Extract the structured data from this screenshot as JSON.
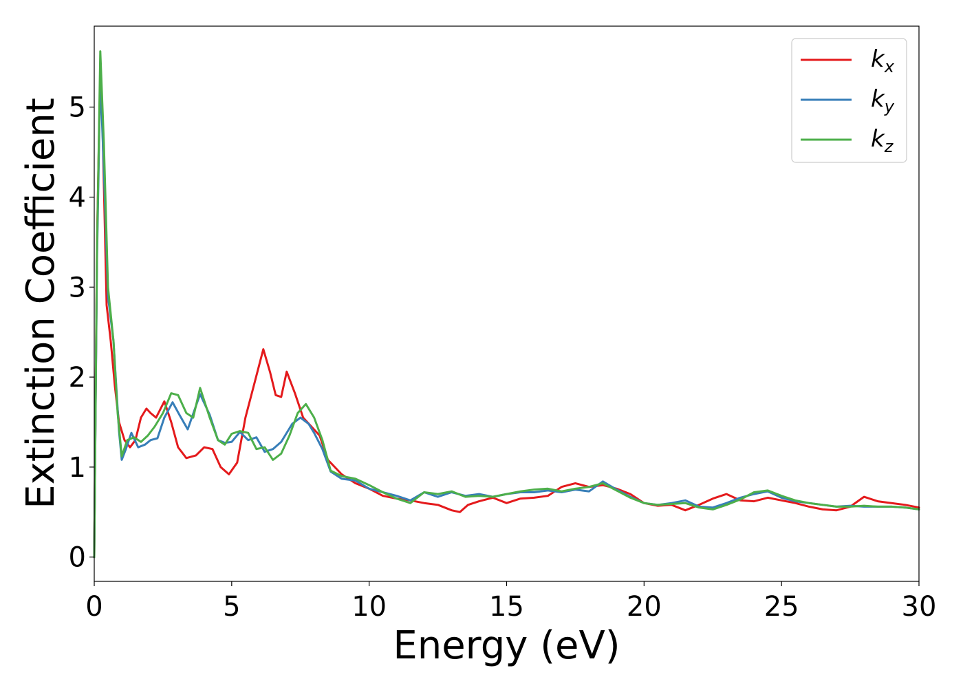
{
  "chart_data": {
    "type": "line",
    "title": "",
    "xlabel": "Energy (eV)",
    "ylabel": "Extinction Coefficient",
    "xlim": [
      0,
      30
    ],
    "ylim": [
      -0.27,
      5.9
    ],
    "xticks": [
      0,
      5,
      10,
      15,
      20,
      25,
      30
    ],
    "yticks": [
      0,
      1,
      2,
      3,
      4,
      5
    ],
    "grid": false,
    "legend_position": "top-right",
    "series": [
      {
        "name": "k",
        "subscript": "x",
        "color": "#e41a1c",
        "x": [
          0,
          0.1,
          0.22,
          0.3,
          0.45,
          0.6,
          0.75,
          0.9,
          1.1,
          1.3,
          1.5,
          1.7,
          1.9,
          2.05,
          2.25,
          2.55,
          2.8,
          3.05,
          3.35,
          3.7,
          4.0,
          4.3,
          4.6,
          4.9,
          5.2,
          5.5,
          5.8,
          6.15,
          6.4,
          6.6,
          6.8,
          7.0,
          7.3,
          7.6,
          7.9,
          8.2,
          8.5,
          9.0,
          9.5,
          10.0,
          10.5,
          11.0,
          11.5,
          12.0,
          12.5,
          13.0,
          13.3,
          13.6,
          14.0,
          14.5,
          15.0,
          15.5,
          16.0,
          16.5,
          17.0,
          17.5,
          18.0,
          18.5,
          19.0,
          19.5,
          20.0,
          20.5,
          21.0,
          21.5,
          22.0,
          22.5,
          23.0,
          23.5,
          24.0,
          24.5,
          25.0,
          25.5,
          26.0,
          26.5,
          27.0,
          27.5,
          28.0,
          28.5,
          29.0,
          29.5,
          30.0
        ],
        "y": [
          0,
          3.5,
          5.42,
          4.8,
          2.8,
          2.4,
          1.9,
          1.5,
          1.3,
          1.22,
          1.3,
          1.55,
          1.65,
          1.6,
          1.55,
          1.73,
          1.5,
          1.22,
          1.1,
          1.13,
          1.22,
          1.2,
          1.0,
          0.92,
          1.05,
          1.55,
          1.9,
          2.31,
          2.05,
          1.8,
          1.78,
          2.06,
          1.82,
          1.55,
          1.45,
          1.35,
          1.08,
          0.92,
          0.82,
          0.76,
          0.68,
          0.65,
          0.63,
          0.6,
          0.58,
          0.52,
          0.5,
          0.58,
          0.62,
          0.66,
          0.6,
          0.65,
          0.66,
          0.68,
          0.78,
          0.82,
          0.78,
          0.8,
          0.76,
          0.7,
          0.6,
          0.57,
          0.58,
          0.52,
          0.58,
          0.65,
          0.7,
          0.63,
          0.62,
          0.66,
          0.63,
          0.6,
          0.56,
          0.53,
          0.52,
          0.56,
          0.67,
          0.62,
          0.6,
          0.58,
          0.55
        ]
      },
      {
        "name": "k",
        "subscript": "y",
        "color": "#377eb8",
        "x": [
          0,
          0.1,
          0.22,
          0.35,
          0.5,
          0.7,
          0.9,
          1.0,
          1.15,
          1.35,
          1.6,
          1.85,
          2.05,
          2.3,
          2.55,
          2.85,
          3.1,
          3.4,
          3.85,
          4.2,
          4.5,
          4.75,
          5.0,
          5.3,
          5.6,
          5.9,
          6.2,
          6.5,
          6.8,
          7.2,
          7.5,
          7.8,
          8.0,
          8.3,
          8.6,
          9.0,
          9.5,
          10.0,
          10.5,
          11.0,
          11.5,
          12.0,
          12.5,
          13.0,
          13.5,
          14.0,
          14.5,
          15.0,
          15.5,
          16.0,
          16.5,
          17.0,
          17.5,
          18.0,
          18.5,
          19.0,
          19.5,
          20.0,
          20.5,
          21.0,
          21.5,
          22.0,
          22.5,
          23.0,
          23.5,
          24.0,
          24.5,
          25.0,
          25.5,
          26.0,
          26.5,
          27.0,
          27.5,
          28.0,
          28.5,
          29.0,
          29.5,
          30.0
        ],
        "y": [
          0,
          3.3,
          5.35,
          4.3,
          2.9,
          2.4,
          1.4,
          1.08,
          1.2,
          1.38,
          1.22,
          1.25,
          1.3,
          1.32,
          1.55,
          1.72,
          1.58,
          1.42,
          1.81,
          1.58,
          1.3,
          1.27,
          1.28,
          1.39,
          1.3,
          1.33,
          1.17,
          1.2,
          1.28,
          1.48,
          1.55,
          1.48,
          1.38,
          1.2,
          0.95,
          0.87,
          0.85,
          0.76,
          0.72,
          0.68,
          0.63,
          0.72,
          0.67,
          0.72,
          0.68,
          0.7,
          0.67,
          0.7,
          0.72,
          0.72,
          0.74,
          0.72,
          0.75,
          0.73,
          0.84,
          0.75,
          0.67,
          0.6,
          0.58,
          0.6,
          0.63,
          0.56,
          0.55,
          0.6,
          0.66,
          0.7,
          0.73,
          0.66,
          0.62,
          0.6,
          0.58,
          0.56,
          0.57,
          0.56,
          0.56,
          0.56,
          0.55,
          0.53
        ]
      },
      {
        "name": "k",
        "subscript": "z",
        "color": "#4daf4a",
        "x": [
          0,
          0.1,
          0.22,
          0.35,
          0.5,
          0.7,
          0.85,
          1.0,
          1.2,
          1.45,
          1.7,
          1.95,
          2.2,
          2.5,
          2.8,
          3.05,
          3.35,
          3.6,
          3.85,
          4.2,
          4.5,
          4.75,
          5.0,
          5.3,
          5.6,
          5.9,
          6.2,
          6.5,
          6.8,
          7.1,
          7.4,
          7.7,
          8.0,
          8.3,
          8.6,
          9.0,
          9.5,
          10.0,
          10.5,
          11.0,
          11.5,
          12.0,
          12.5,
          13.0,
          13.5,
          14.0,
          14.5,
          15.0,
          15.5,
          16.0,
          16.5,
          17.0,
          17.5,
          18.0,
          18.5,
          19.0,
          19.5,
          20.0,
          20.5,
          21.0,
          21.5,
          22.0,
          22.5,
          23.0,
          23.5,
          24.0,
          24.5,
          25.0,
          25.5,
          26.0,
          26.5,
          27.0,
          27.5,
          28.0,
          28.5,
          29.0,
          29.5,
          30.0
        ],
        "y": [
          0,
          3.4,
          5.62,
          4.6,
          3.0,
          2.4,
          1.6,
          1.12,
          1.3,
          1.33,
          1.28,
          1.35,
          1.45,
          1.6,
          1.82,
          1.8,
          1.6,
          1.55,
          1.88,
          1.55,
          1.3,
          1.25,
          1.37,
          1.4,
          1.38,
          1.2,
          1.22,
          1.08,
          1.15,
          1.35,
          1.6,
          1.7,
          1.55,
          1.3,
          0.96,
          0.9,
          0.87,
          0.8,
          0.72,
          0.65,
          0.6,
          0.72,
          0.7,
          0.73,
          0.67,
          0.68,
          0.67,
          0.7,
          0.73,
          0.75,
          0.76,
          0.73,
          0.76,
          0.78,
          0.82,
          0.74,
          0.66,
          0.6,
          0.58,
          0.59,
          0.6,
          0.55,
          0.53,
          0.58,
          0.64,
          0.72,
          0.74,
          0.68,
          0.63,
          0.6,
          0.58,
          0.56,
          0.56,
          0.57,
          0.56,
          0.56,
          0.55,
          0.53
        ]
      }
    ]
  },
  "colors": {
    "background": "#ffffff",
    "axis": "#000000",
    "legend_border": "#cccccc"
  }
}
